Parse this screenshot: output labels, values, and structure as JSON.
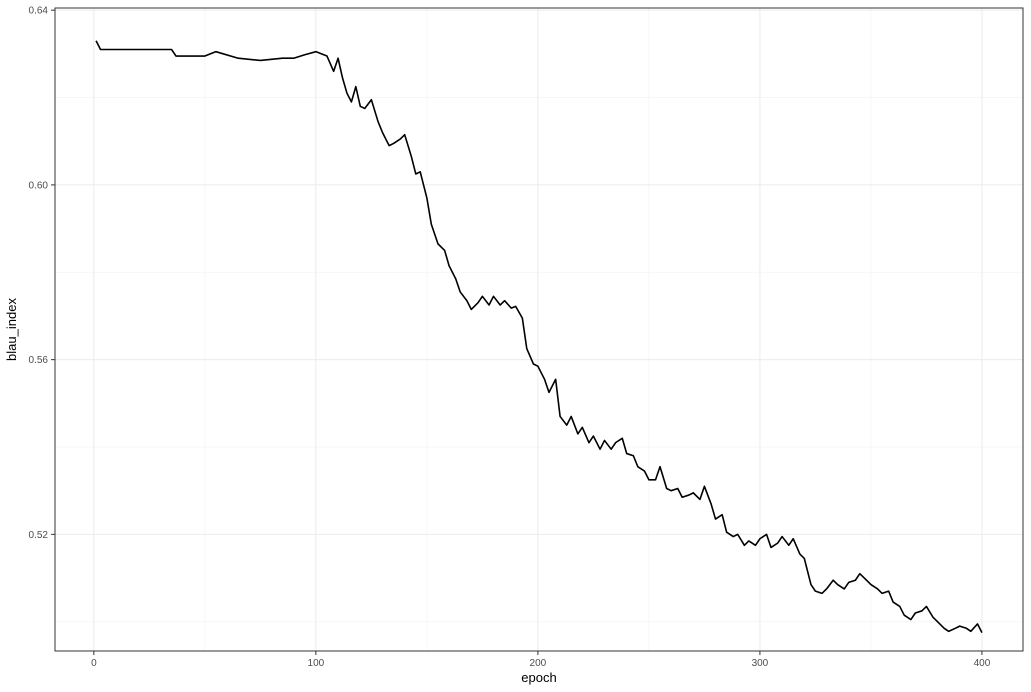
{
  "chart_data": {
    "type": "line",
    "xlabel": "epoch",
    "ylabel": "blau_index",
    "xlim": [
      -17.5,
      418.5
    ],
    "ylim": [
      0.4933,
      0.6405
    ],
    "x_ticks": [
      0,
      100,
      200,
      300,
      400
    ],
    "x_tick_labels": [
      "0",
      "100",
      "200",
      "300",
      "400"
    ],
    "y_ticks": [
      0.52,
      0.56,
      0.6,
      0.64
    ],
    "y_tick_labels": [
      "0.52",
      "0.56",
      "0.60",
      "0.64"
    ],
    "grid": true,
    "line_color": "#000000",
    "series": [
      {
        "x": [
          1,
          3,
          20,
          35,
          37,
          50,
          55,
          65,
          75,
          85,
          90,
          95,
          100,
          105,
          108,
          110,
          112,
          114,
          116,
          118,
          120,
          122,
          125,
          128,
          130,
          133,
          135,
          138,
          140,
          143,
          145,
          147,
          150,
          152,
          155,
          158,
          160,
          163,
          165,
          168,
          170,
          173,
          175,
          178,
          180,
          183,
          185,
          188,
          190,
          193,
          195,
          198,
          200,
          203,
          205,
          208,
          210,
          213,
          215,
          218,
          220,
          223,
          225,
          228,
          230,
          233,
          235,
          238,
          240,
          243,
          245,
          248,
          250,
          253,
          255,
          258,
          260,
          263,
          265,
          268,
          270,
          273,
          275,
          278,
          280,
          283,
          285,
          288,
          290,
          293,
          295,
          298,
          300,
          303,
          305,
          308,
          310,
          313,
          315,
          318,
          320,
          323,
          325,
          328,
          330,
          333,
          335,
          338,
          340,
          343,
          345,
          348,
          350,
          353,
          355,
          358,
          360,
          363,
          365,
          368,
          370,
          373,
          375,
          378,
          380,
          383,
          385,
          388,
          390,
          393,
          395,
          398,
          400
        ],
        "y": [
          0.633,
          0.631,
          0.631,
          0.631,
          0.6295,
          0.6295,
          0.6305,
          0.629,
          0.6285,
          0.629,
          0.629,
          0.6298,
          0.6305,
          0.6295,
          0.626,
          0.629,
          0.6245,
          0.621,
          0.619,
          0.6225,
          0.618,
          0.6175,
          0.6195,
          0.6145,
          0.612,
          0.609,
          0.6095,
          0.6105,
          0.6115,
          0.6065,
          0.6025,
          0.603,
          0.597,
          0.591,
          0.5865,
          0.585,
          0.5815,
          0.5785,
          0.5755,
          0.5735,
          0.5715,
          0.573,
          0.5745,
          0.5725,
          0.5745,
          0.5725,
          0.5735,
          0.5718,
          0.5722,
          0.5695,
          0.5625,
          0.559,
          0.5585,
          0.5555,
          0.5525,
          0.5555,
          0.547,
          0.545,
          0.547,
          0.543,
          0.5445,
          0.541,
          0.5425,
          0.5395,
          0.5415,
          0.5395,
          0.541,
          0.542,
          0.5385,
          0.538,
          0.5355,
          0.5345,
          0.5325,
          0.5325,
          0.5355,
          0.5305,
          0.53,
          0.5305,
          0.5285,
          0.529,
          0.5295,
          0.528,
          0.531,
          0.527,
          0.5235,
          0.5245,
          0.5205,
          0.5195,
          0.52,
          0.5175,
          0.5185,
          0.5175,
          0.519,
          0.52,
          0.517,
          0.518,
          0.5195,
          0.5175,
          0.519,
          0.5155,
          0.5145,
          0.5085,
          0.507,
          0.5065,
          0.5075,
          0.5095,
          0.5085,
          0.5075,
          0.509,
          0.5095,
          0.511,
          0.5095,
          0.5085,
          0.5075,
          0.5065,
          0.507,
          0.5045,
          0.5035,
          0.5015,
          0.5005,
          0.502,
          0.5025,
          0.5035,
          0.501,
          0.5,
          0.4985,
          0.4978,
          0.4985,
          0.499,
          0.4985,
          0.4978,
          0.4995,
          0.4975
        ]
      }
    ]
  }
}
